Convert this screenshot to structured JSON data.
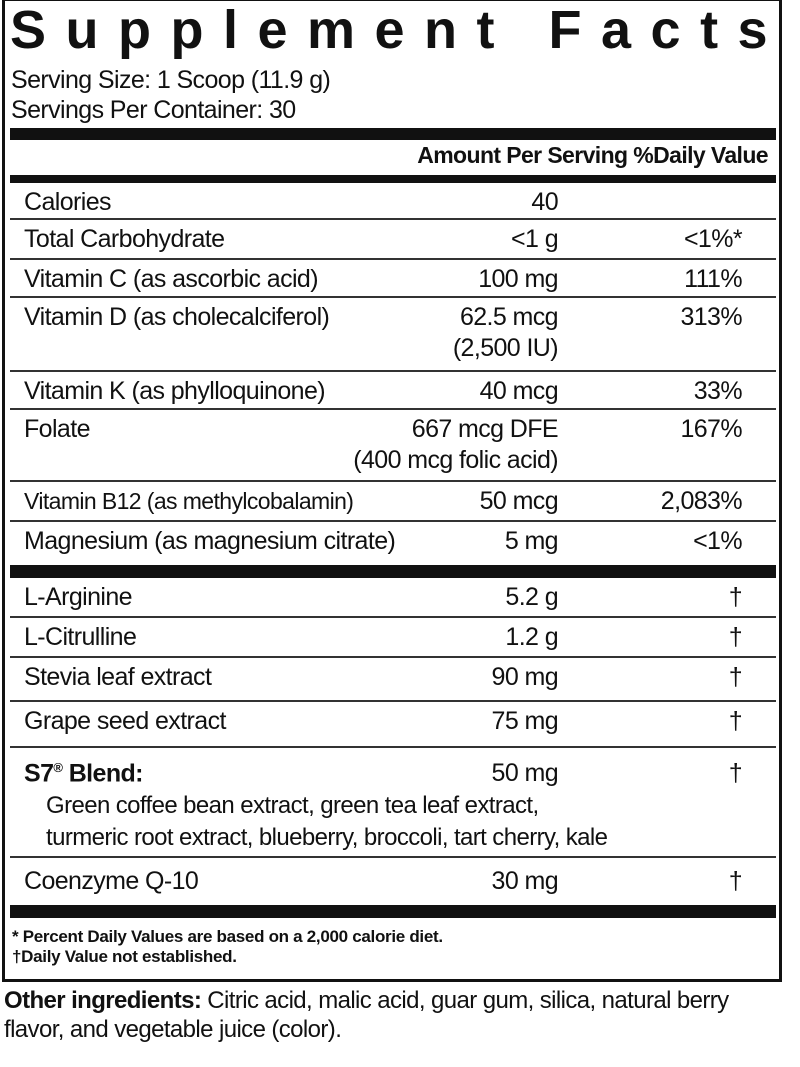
{
  "title": "Supplement Facts",
  "serving_size": "Serving Size: 1 Scoop (11.9 g)",
  "servings_per_container": "Servings Per Container: 30",
  "header": {
    "amount": "Amount Per Serving",
    "dv": "%Daily Value"
  },
  "nutrients": [
    {
      "name": "Calories",
      "amount": "40",
      "dv": ""
    },
    {
      "name": "Total Carbohydrate",
      "amount": "<1 g",
      "dv": "<1%*"
    },
    {
      "name": "Vitamin C (as ascorbic acid)",
      "amount": "100 mg",
      "dv": "111%"
    },
    {
      "name": "Vitamin D (as cholecalciferol)",
      "amount": "62.5 mcg",
      "amount2": "(2,500 IU)",
      "dv": "313%"
    },
    {
      "name": "Vitamin K (as phylloquinone)",
      "amount": "40 mcg",
      "dv": "33%"
    },
    {
      "name": "Folate",
      "amount": "667 mcg DFE",
      "amount2": "(400 mcg folic acid)",
      "dv": "167%"
    },
    {
      "name": "Vitamin B12 (as methylcobalamin)",
      "amount": "50 mcg",
      "dv": "2,083%"
    },
    {
      "name": "Magnesium (as magnesium citrate)",
      "amount": "5 mg",
      "dv": "<1%"
    }
  ],
  "other_nutrients": [
    {
      "name": "L-Arginine",
      "amount": "5.2 g",
      "dv": "†"
    },
    {
      "name": "L-Citrulline",
      "amount": "1.2 g",
      "dv": "†"
    },
    {
      "name": "Stevia leaf extract",
      "amount": "90 mg",
      "dv": "†"
    },
    {
      "name": "Grape seed extract",
      "amount": "75 mg",
      "dv": "†"
    },
    {
      "name": "S7",
      "registered": "®",
      "name_suffix": " Blend:",
      "amount": "50 mg",
      "dv": "†",
      "ingredients_line1": "Green coffee bean extract, green tea leaf extract,",
      "ingredients_line2": "turmeric root extract, blueberry, broccoli, tart cherry, kale"
    },
    {
      "name": "Coenzyme Q-10",
      "amount": "30 mg",
      "dv": "†"
    }
  ],
  "footnotes": {
    "percent": "* Percent Daily Values are based on a 2,000 calorie diet.",
    "dagger": "†Daily Value not established."
  },
  "other_ingredients": {
    "label": "Other ingredients:",
    "text": " Citric acid, malic acid, guar gum, silica, natural berry flavor, and vegetable juice (color)."
  }
}
